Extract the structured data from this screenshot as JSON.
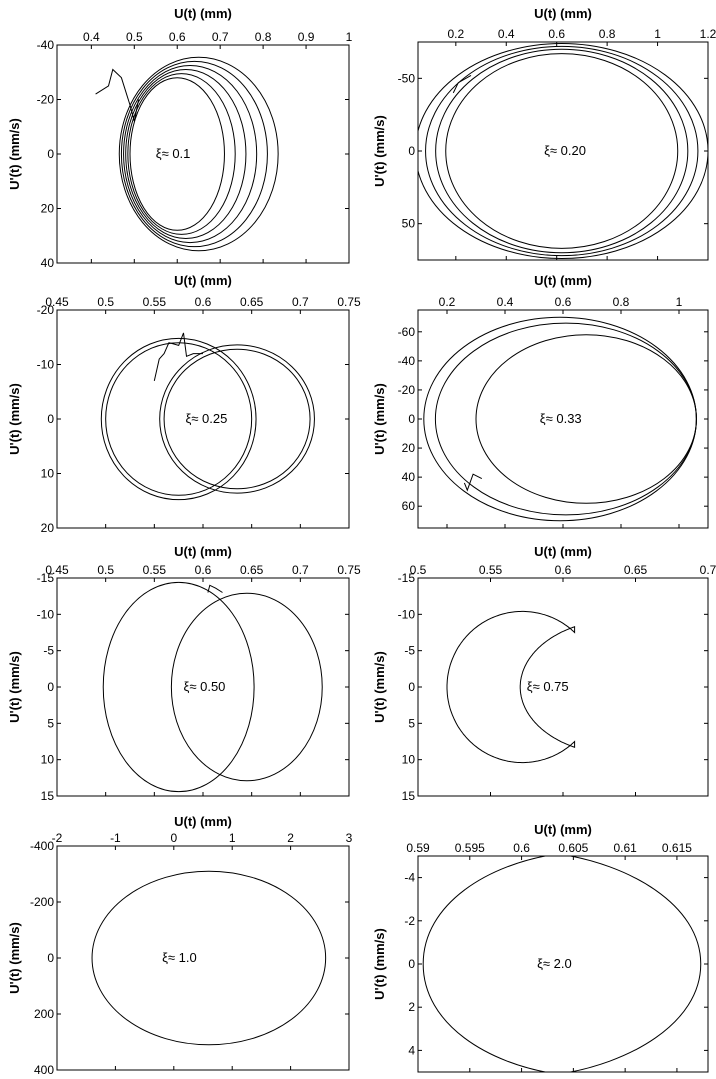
{
  "chart_data": [
    {
      "type": "line",
      "xlabel": "U(t)  (mm)",
      "ylabel": "U'(t)  (mm/s)",
      "annotation": "ξ≈ 0.1",
      "xlim": [
        0.32,
        1.0
      ],
      "ylim": [
        -40,
        40
      ],
      "y_inverted": true,
      "xticks": [
        "0.4",
        "0.5",
        "0.6",
        "0.7",
        "0.8",
        "0.9",
        "1"
      ],
      "yticks": [
        "-40",
        "-20",
        "0",
        "20",
        "40"
      ],
      "xtick_values": [
        0.4,
        0.5,
        0.6,
        0.7,
        0.8,
        0.9,
        1.0
      ],
      "ytick_values": [
        -40,
        -20,
        0,
        20,
        40
      ],
      "annotation_pos": [
        0.55,
        0
      ],
      "ellipses": [
        {
          "cx": 0.6,
          "cy": 0,
          "rx": 0.11,
          "ry": 28
        },
        {
          "cx": 0.61,
          "cy": 0,
          "rx": 0.125,
          "ry": 29.5
        },
        {
          "cx": 0.62,
          "cy": 0,
          "rx": 0.14,
          "ry": 31
        },
        {
          "cx": 0.63,
          "cy": 0,
          "rx": 0.155,
          "ry": 32.5
        },
        {
          "cx": 0.64,
          "cy": 0,
          "rx": 0.17,
          "ry": 34
        },
        {
          "cx": 0.65,
          "cy": 0,
          "rx": 0.185,
          "ry": 35.5
        }
      ],
      "transient": [
        [
          0.41,
          -22
        ],
        [
          0.44,
          -25
        ],
        [
          0.45,
          -31
        ],
        [
          0.47,
          -28
        ],
        [
          0.49,
          -18
        ],
        [
          0.5,
          -12
        ],
        [
          0.51,
          -20
        ]
      ]
    },
    {
      "type": "line",
      "xlabel": "U(t)  (mm)",
      "ylabel": "U'(t)  (mm/s)",
      "annotation": "ξ≈ 0.20",
      "xlim": [
        0.05,
        1.2
      ],
      "ylim": [
        -75,
        75
      ],
      "y_inverted": true,
      "xticks": [
        "0.2",
        "0.4",
        "0.6",
        "0.8",
        "1",
        "1.2"
      ],
      "yticks": [
        "-50",
        "0",
        "50"
      ],
      "xtick_values": [
        0.2,
        0.4,
        0.6,
        0.8,
        1.0,
        1.2
      ],
      "ytick_values": [
        -50,
        0,
        50
      ],
      "annotation_pos": [
        0.55,
        0
      ],
      "ellipses": [
        {
          "cx": 0.62,
          "cy": 0,
          "rx": 0.46,
          "ry": 67
        },
        {
          "cx": 0.62,
          "cy": 0,
          "rx": 0.5,
          "ry": 70
        },
        {
          "cx": 0.62,
          "cy": 0,
          "rx": 0.54,
          "ry": 72
        },
        {
          "cx": 0.62,
          "cy": 0,
          "rx": 0.58,
          "ry": 74
        }
      ],
      "transient": [
        [
          0.19,
          -40
        ],
        [
          0.21,
          -47
        ],
        [
          0.26,
          -52
        ]
      ]
    },
    {
      "type": "line",
      "xlabel": "U(t)  (mm)",
      "ylabel": "U'(t)  (mm/s)",
      "annotation": "ξ≈ 0.25",
      "xlim": [
        0.45,
        0.75
      ],
      "ylim": [
        -20,
        20
      ],
      "y_inverted": true,
      "xticks": [
        "0.45",
        "0.5",
        "0.55",
        "0.6",
        "0.65",
        "0.7",
        "0.75"
      ],
      "yticks": [
        "-20",
        "-10",
        "0",
        "10",
        "20"
      ],
      "xtick_values": [
        0.45,
        0.5,
        0.55,
        0.6,
        0.65,
        0.7,
        0.75
      ],
      "ytick_values": [
        -20,
        -10,
        0,
        10,
        20
      ],
      "annotation_pos": [
        0.582,
        0
      ],
      "ellipses": [
        {
          "cx": 0.575,
          "cy": 0,
          "rx": 0.075,
          "ry": 14
        },
        {
          "cx": 0.575,
          "cy": 0,
          "rx": 0.0795,
          "ry": 14.8
        },
        {
          "cx": 0.635,
          "cy": 0,
          "rx": 0.075,
          "ry": 12.8
        },
        {
          "cx": 0.635,
          "cy": 0,
          "rx": 0.0795,
          "ry": 13.6
        }
      ],
      "transient": [
        [
          0.55,
          -7
        ],
        [
          0.555,
          -11
        ],
        [
          0.56,
          -12
        ],
        [
          0.565,
          -14
        ],
        [
          0.575,
          -13.5
        ],
        [
          0.58,
          -15.8
        ],
        [
          0.583,
          -11.5
        ],
        [
          0.59,
          -12
        ],
        [
          0.6,
          -12
        ]
      ]
    },
    {
      "type": "line",
      "xlabel": "U(t)  (mm)",
      "ylabel": "U'(t)  (mm/s)",
      "annotation": "ξ≈ 0.33",
      "xlim": [
        0.1,
        1.1
      ],
      "ylim": [
        -75,
        75
      ],
      "y_inverted": true,
      "xticks": [
        "0.2",
        "0.4",
        "0.6",
        "0.8",
        "1"
      ],
      "yticks": [
        "-60",
        "-40",
        "-20",
        "0",
        "20",
        "40",
        "60"
      ],
      "xtick_values": [
        0.2,
        0.4,
        0.6,
        0.8,
        1.0
      ],
      "ytick_values": [
        -60,
        -40,
        -20,
        0,
        20,
        40,
        60
      ],
      "annotation_pos": [
        0.52,
        0
      ],
      "ellipses": [
        {
          "cx": 0.59,
          "cy": 0,
          "rx": 0.47,
          "ry": 70
        },
        {
          "cx": 0.61,
          "cy": 0,
          "rx": 0.45,
          "ry": 66
        },
        {
          "cx": 0.68,
          "cy": 0,
          "rx": 0.38,
          "ry": 58
        }
      ],
      "transient": [
        [
          0.26,
          44
        ],
        [
          0.27,
          49
        ],
        [
          0.29,
          38
        ],
        [
          0.32,
          41
        ]
      ]
    },
    {
      "type": "line",
      "xlabel": "U(t)  (mm)",
      "ylabel": "U'(t)  (mm/s)",
      "annotation": "ξ≈ 0.50",
      "xlim": [
        0.45,
        0.75
      ],
      "ylim": [
        -15,
        15
      ],
      "y_inverted": true,
      "xticks": [
        "0.45",
        "0.5",
        "0.55",
        "0.6",
        "0.65",
        "0.7",
        "0.75"
      ],
      "yticks": [
        "-15",
        "-10",
        "-5",
        "0",
        "5",
        "10",
        "15"
      ],
      "xtick_values": [
        0.45,
        0.5,
        0.55,
        0.6,
        0.65,
        0.7,
        0.75
      ],
      "ytick_values": [
        -15,
        -10,
        -5,
        0,
        5,
        10,
        15
      ],
      "annotation_pos": [
        0.58,
        0
      ],
      "ellipses": [
        {
          "cx": 0.575,
          "cy": 0,
          "rx": 0.0775,
          "ry": 14.4
        },
        {
          "cx": 0.645,
          "cy": 0,
          "rx": 0.0775,
          "ry": 12.9
        }
      ],
      "transient": [
        [
          0.605,
          -13
        ],
        [
          0.607,
          -14
        ],
        [
          0.613,
          -13.6
        ],
        [
          0.62,
          -13
        ]
      ]
    },
    {
      "type": "line",
      "xlabel": "U(t)  (mm)",
      "ylabel": "U'(t)  (mm/s)",
      "annotation": "ξ≈ 0.75",
      "xlim": [
        0.5,
        0.7
      ],
      "ylim": [
        -15,
        15
      ],
      "y_inverted": true,
      "xticks": [
        "0.5",
        "0.55",
        "0.6",
        "0.65",
        "0.7"
      ],
      "yticks": [
        "-15",
        "-10",
        "-5",
        "0",
        "5",
        "10",
        "15"
      ],
      "xtick_values": [
        0.5,
        0.55,
        0.6,
        0.65,
        0.7
      ],
      "ytick_values": [
        -15,
        -10,
        -5,
        0,
        5,
        10,
        15
      ],
      "annotation_pos": [
        0.575,
        0
      ],
      "ellipses": [],
      "dumbbell": {
        "lx": 0.572,
        "lrx": 0.052,
        "lry": 10.4,
        "rxc": 0.639,
        "rrx": 0.0685,
        "rry": 9.3,
        "pinch": 0.608
      },
      "transient": []
    },
    {
      "type": "line",
      "xlabel": "U(t)  (mm)",
      "ylabel": "U'(t)  (mm/s)",
      "annotation": "ξ≈ 1.0",
      "xlim": [
        -2,
        3
      ],
      "ylim": [
        -400,
        400
      ],
      "y_inverted": true,
      "xticks": [
        "-2",
        "-1",
        "0",
        "1",
        "2",
        "3"
      ],
      "yticks": [
        "-400",
        "-200",
        "0",
        "200",
        "400"
      ],
      "xtick_values": [
        -2,
        -1,
        0,
        1,
        2,
        3
      ],
      "ytick_values": [
        -400,
        -200,
        0,
        200,
        400
      ],
      "annotation_pos": [
        -0.2,
        0
      ],
      "ellipses": [
        {
          "cx": 0.6,
          "cy": 0,
          "rx": 2.0,
          "ry": 310
        }
      ],
      "transient": []
    },
    {
      "type": "line",
      "xlabel": "U(t)  (mm)",
      "ylabel": "U'(t)  (mm/s)",
      "annotation": "ξ≈ 2.0",
      "xlim": [
        0.59,
        0.618
      ],
      "ylim": [
        -5,
        5
      ],
      "y_inverted": true,
      "xticks": [
        "0.59",
        "0.595",
        "0.6",
        "0.605",
        "0.61",
        "0.615"
      ],
      "yticks": [
        "-4",
        "-2",
        "0",
        "2",
        "4"
      ],
      "xtick_values": [
        0.59,
        0.595,
        0.6,
        0.605,
        0.61,
        0.615
      ],
      "ytick_values": [
        -4,
        -2,
        0,
        2,
        4
      ],
      "annotation_pos": [
        0.6015,
        0
      ],
      "ellipses": [],
      "lens": {
        "xl": 0.5905,
        "xr": 0.6173,
        "xc": 0.6035,
        "amp": 5.1
      },
      "transient": []
    }
  ]
}
